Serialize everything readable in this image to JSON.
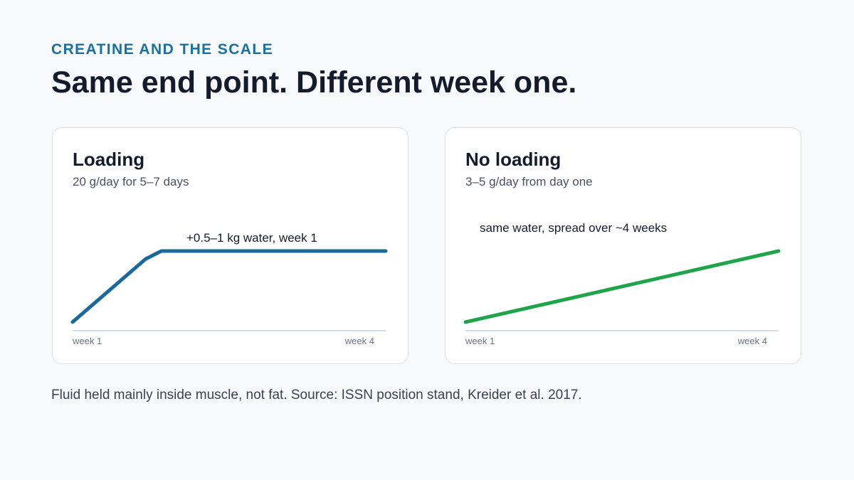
{
  "header": {
    "eyebrow": "CREATINE AND THE SCALE",
    "headline": "Same end point. Different week one."
  },
  "colors": {
    "eyebrow": "#1672a3",
    "loading_line": "#17699f",
    "no_loading_line": "#1ea54a",
    "axis": "#d6dbe1"
  },
  "chart_data": [
    {
      "type": "line",
      "title": "Loading",
      "subtitle": "20 g/day for 5–7 days",
      "xlabel": "",
      "ylabel": "",
      "tick_labels": [
        "week 1",
        "week 4"
      ],
      "xlim": [
        1,
        4
      ],
      "ylim": [
        0,
        1.1
      ],
      "grid": false,
      "series": [
        {
          "x": [
            1,
            1.7,
            1.85,
            4
          ],
          "y": [
            0.1,
            0.9,
            1.0,
            1.0
          ]
        }
      ],
      "annotation": "+0.5–1 kg water, week 1"
    },
    {
      "type": "line",
      "title": "No loading",
      "subtitle": "3–5 g/day from day one",
      "xlabel": "",
      "ylabel": "",
      "tick_labels": [
        "week 1",
        "week 4"
      ],
      "xlim": [
        1,
        4
      ],
      "ylim": [
        0,
        1.1
      ],
      "grid": false,
      "series": [
        {
          "x": [
            1,
            4
          ],
          "y": [
            0.1,
            1.0
          ]
        }
      ],
      "annotation": "same water, spread over ~4 weeks"
    }
  ],
  "footnote": "Fluid held mainly inside muscle, not fat. Source: ISSN position stand, Kreider et al. 2017."
}
